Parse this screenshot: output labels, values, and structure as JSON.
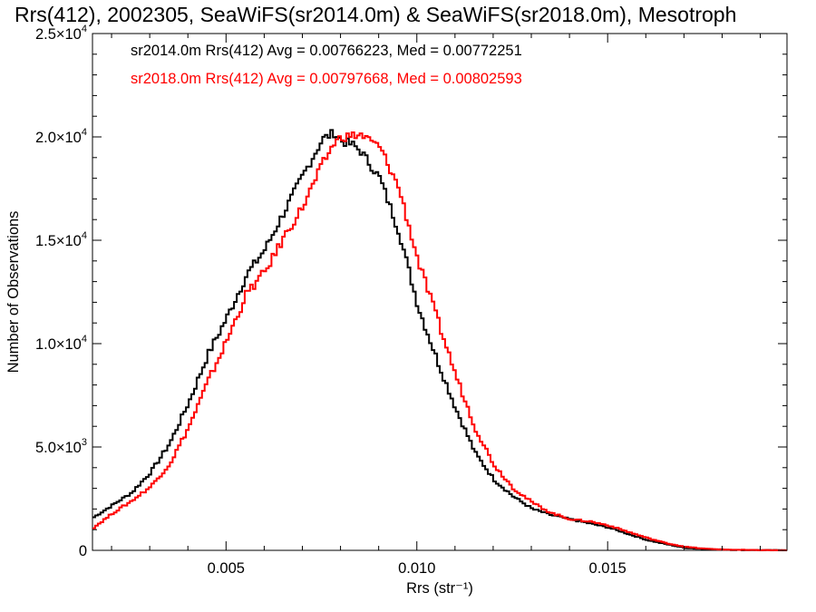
{
  "chart_data": {
    "type": "line",
    "title": "Rrs(412), 2002305, SeaWiFS(sr2014.0m) & SeaWiFS(sr2018.0m), Mesotroph",
    "xlabel": "Rrs (str⁻¹)",
    "ylabel": "Number of Observations",
    "xlim": [
      0.0015,
      0.0197
    ],
    "ylim": [
      0,
      25000
    ],
    "x_ticks": [
      {
        "value": 0.005,
        "label": "0.005"
      },
      {
        "value": 0.01,
        "label": "0.010"
      },
      {
        "value": 0.015,
        "label": "0.015"
      }
    ],
    "y_ticks": [
      {
        "value": 0,
        "mant": "0",
        "exp": ""
      },
      {
        "value": 5000,
        "mant": "5.0×10",
        "exp": "3"
      },
      {
        "value": 10000,
        "mant": "1.0×10",
        "exp": "4"
      },
      {
        "value": 15000,
        "mant": "1.5×10",
        "exp": "4"
      },
      {
        "value": 20000,
        "mant": "2.0×10",
        "exp": "4"
      },
      {
        "value": 25000,
        "mant": "2.5×10",
        "exp": "4"
      }
    ],
    "grid": false,
    "legend": [
      {
        "text": "sr2014.0m Rrs(412) Avg = 0.00766223, Med = 0.00772251",
        "color": "#000000"
      },
      {
        "text": "sr2018.0m Rrs(412) Avg = 0.00797668, Med = 0.00802593",
        "color": "#ff0000"
      }
    ],
    "series": [
      {
        "color": "#000000",
        "x": [
          0.0015,
          0.002,
          0.0025,
          0.003,
          0.0035,
          0.004,
          0.0045,
          0.005,
          0.0055,
          0.006,
          0.0065,
          0.007,
          0.0075,
          0.0078,
          0.008,
          0.0083,
          0.0085,
          0.009,
          0.0095,
          0.01,
          0.0105,
          0.011,
          0.0115,
          0.012,
          0.0125,
          0.013,
          0.0135,
          0.014,
          0.0145,
          0.015,
          0.0155,
          0.016,
          0.0165,
          0.017,
          0.0175,
          0.018,
          0.0185,
          0.019,
          0.0197
        ],
        "y": [
          1600,
          2200,
          2800,
          3800,
          5200,
          7200,
          9500,
          11300,
          13300,
          14600,
          16400,
          18200,
          19900,
          20200,
          19800,
          19600,
          19300,
          18000,
          15400,
          11800,
          9200,
          6800,
          4700,
          3400,
          2600,
          2000,
          1700,
          1500,
          1300,
          1100,
          800,
          500,
          300,
          120,
          60,
          30,
          15,
          10,
          5
        ]
      },
      {
        "color": "#ff0000",
        "x": [
          0.0015,
          0.002,
          0.0025,
          0.003,
          0.0035,
          0.004,
          0.0045,
          0.005,
          0.0055,
          0.006,
          0.0065,
          0.007,
          0.0075,
          0.0078,
          0.008,
          0.0085,
          0.009,
          0.0095,
          0.01,
          0.0105,
          0.011,
          0.0115,
          0.012,
          0.0125,
          0.013,
          0.0135,
          0.014,
          0.0145,
          0.015,
          0.0155,
          0.016,
          0.0165,
          0.017,
          0.0175,
          0.018,
          0.0185,
          0.019,
          0.0197
        ],
        "y": [
          1100,
          1800,
          2400,
          3100,
          4200,
          6000,
          8200,
          10200,
          12400,
          13500,
          15200,
          16700,
          18700,
          19700,
          20000,
          20100,
          19500,
          17500,
          14000,
          11200,
          8400,
          5900,
          4100,
          3000,
          2300,
          1800,
          1500,
          1400,
          1200,
          900,
          600,
          350,
          170,
          80,
          40,
          20,
          10,
          5
        ]
      }
    ]
  }
}
